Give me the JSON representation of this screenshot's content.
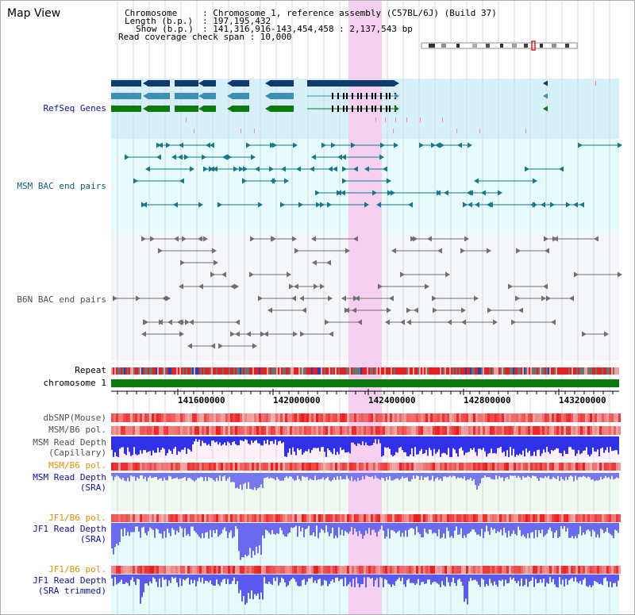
{
  "title": "Map View",
  "info": {
    "chromosome_key": "Chromosome",
    "chromosome_val": ": Chromosome 1, reference assembly (C57BL/6J) (Build 37)",
    "length_key": "Length (b.p.)",
    "length_val": ": 197,195,432",
    "show_key": "Show (b.p.)",
    "show_val": ": 141,316,916-143,454,458 : 2,137,543 bp",
    "coverage": "Read coverage check span : 10,000"
  },
  "tracks": {
    "refseq": "RefSeq Genes",
    "msm_bac": "MSM BAC end pairs",
    "b6n_bac": "B6N BAC end pairs",
    "repeat": "Repeat",
    "chromosome": "chromosome 1",
    "dbsnp": "dbSNP(Mouse)",
    "msm_b6_pol_1": "MSM/B6 pol.",
    "msm_depth_cap_1": "MSM Read Depth",
    "msm_depth_cap_2": "(Capillary)",
    "msm_b6_pol_2": "MSM/B6 pol.",
    "msm_depth_sra_1": "MSM Read Depth",
    "msm_depth_sra_2": "(SRA)",
    "jf1_b6_pol_1": "JF1/B6 pol.",
    "jf1_depth_sra_1": "JF1 Read Depth",
    "jf1_depth_sra_2": "(SRA)",
    "jf1_b6_pol_2": "JF1/B6 pol.",
    "jf1_depth_trim_1": "JF1 Read Depth",
    "jf1_depth_trim_2": "(SRA trimmed)"
  },
  "ruler": {
    "ticks": [
      "141600000",
      "142000000",
      "142400000",
      "142800000",
      "143200000"
    ]
  },
  "colors": {
    "highlight": "#f6d4f0",
    "refseq_bg": "#d6f0fa",
    "bac_bg": "#e6fbfb",
    "refseq_label": "#1010a0",
    "msm_label": "#106080",
    "b6n_label": "#505050",
    "pol_label": "#e09000",
    "depth_label": "#1010a0",
    "gene_dark": "#0e3a6e",
    "gene_mid": "#3d8fb5",
    "gene_green": "#0d7a0d",
    "depth_blue": "#2a2aef"
  }
}
